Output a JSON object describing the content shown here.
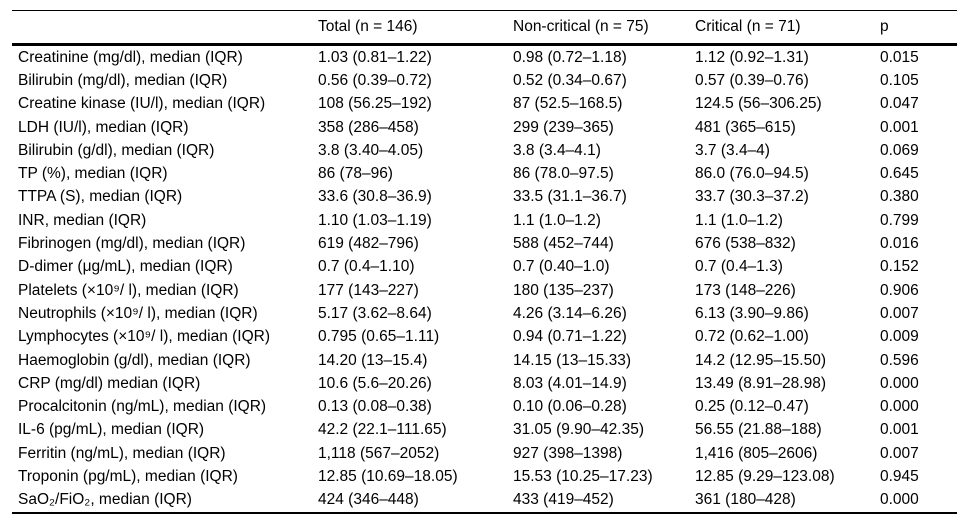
{
  "table": {
    "columns": [
      "",
      "Total (n = 146)",
      "Non-critical (n = 75)",
      "Critical (n = 71)",
      "p"
    ],
    "rows": [
      {
        "label": "Creatinine (mg/dl), median (IQR)",
        "total": "1.03 (0.81–1.22)",
        "non_critical": "0.98 (0.72–1.18)",
        "critical": "1.12 (0.92–1.31)",
        "p": "0.015"
      },
      {
        "label": "Bilirubin (mg/dl), median (IQR)",
        "total": "0.56 (0.39–0.72)",
        "non_critical": "0.52 (0.34–0.67)",
        "critical": "0.57 (0.39–0.76)",
        "p": "0.105"
      },
      {
        "label": "Creatine kinase (IU/l), median (IQR)",
        "total": "108 (56.25–192)",
        "non_critical": "87 (52.5–168.5)",
        "critical": "124.5 (56–306.25)",
        "p": "0.047"
      },
      {
        "label": "LDH (IU/l), median (IQR)",
        "total": "358 (286–458)",
        "non_critical": "299 (239–365)",
        "critical": "481 (365–615)",
        "p": "0.001"
      },
      {
        "label": "Bilirubin (g/dl), median (IQR)",
        "total": "3.8 (3.40–4.05)",
        "non_critical": "3.8 (3.4–4.1)",
        "critical": "3.7 (3.4–4)",
        "p": "0.069"
      },
      {
        "label": "TP (%), median (IQR)",
        "total": "86 (78–96)",
        "non_critical": "86 (78.0–97.5)",
        "critical": "86.0 (76.0–94.5)",
        "p": "0.645"
      },
      {
        "label": "TTPA (S), median (IQR)",
        "total": "33.6 (30.8–36.9)",
        "non_critical": "33.5 (31.1–36.7)",
        "critical": "33.7 (30.3–37.2)",
        "p": "0.380"
      },
      {
        "label": "INR, median (IQR)",
        "total": "1.10 (1.03–1.19)",
        "non_critical": "1.1 (1.0–1.2)",
        "critical": "1.1 (1.0–1.2)",
        "p": "0.799"
      },
      {
        "label": "Fibrinogen (mg/dl), median (IQR)",
        "total": "619 (482–796)",
        "non_critical": "588 (452–744)",
        "critical": "676 (538–832)",
        "p": "0.016"
      },
      {
        "label": "D-dimer (μg/mL), median (IQR)",
        "total": "0.7 (0.4–1.10)",
        "non_critical": "0.7 (0.40–1.0)",
        "critical": "0.7 (0.4–1.3)",
        "p": "0.152"
      },
      {
        "label": "Platelets (×10⁹/ l), median (IQR)",
        "total": "177 (143–227)",
        "non_critical": "180 (135–237)",
        "critical": "173 (148–226)",
        "p": "0.906"
      },
      {
        "label": "Neutrophils (×10⁹/ l), median (IQR)",
        "total": "5.17 (3.62–8.64)",
        "non_critical": "4.26 (3.14–6.26)",
        "critical": "6.13 (3.90–9.86)",
        "p": "0.007"
      },
      {
        "label": "Lymphocytes (×10⁹/ l), median (IQR)",
        "total": "0.795 (0.65–1.11)",
        "non_critical": "0.94 (0.71–1.22)",
        "critical": "0.72 (0.62–1.00)",
        "p": "0.009"
      },
      {
        "label": "Haemoglobin (g/dl), median (IQR)",
        "total": "14.20 (13–15.4)",
        "non_critical": "14.15 (13–15.33)",
        "critical": "14.2 (12.95–15.50)",
        "p": "0.596"
      },
      {
        "label": "CRP (mg/dl) median (IQR)",
        "total": "10.6 (5.6–20.26)",
        "non_critical": "8.03 (4.01–14.9)",
        "critical": "13.49 (8.91–28.98)",
        "p": "0.000"
      },
      {
        "label": "Procalcitonin (ng/mL), median (IQR)",
        "total": "0.13 (0.08–0.38)",
        "non_critical": "0.10 (0.06–0.28)",
        "critical": "0.25 (0.12–0.47)",
        "p": "0.000"
      },
      {
        "label": "IL-6 (pg/mL), median (IQR)",
        "total": "42.2 (22.1–111.65)",
        "non_critical": "31.05 (9.90–42.35)",
        "critical": "56.55 (21.88–188)",
        "p": "0.001"
      },
      {
        "label": "Ferritin (ng/mL), median (IQR)",
        "total": "1,118 (567–2052)",
        "non_critical": "927 (398–1398)",
        "critical": "1,416 (805–2606)",
        "p": "0.007"
      },
      {
        "label": "Troponin (pg/mL), median (IQR)",
        "total": "12.85 (10.69–18.05)",
        "non_critical": "15.53 (10.25–17.23)",
        "critical": "12.85 (9.29–123.08)",
        "p": "0.945"
      },
      {
        "label": "SaO₂/FiO₂, median (IQR)",
        "total": "424 (346–448)",
        "non_critical": "433 (419–452)",
        "critical": "361 (180–428)",
        "p": "0.000"
      }
    ]
  }
}
